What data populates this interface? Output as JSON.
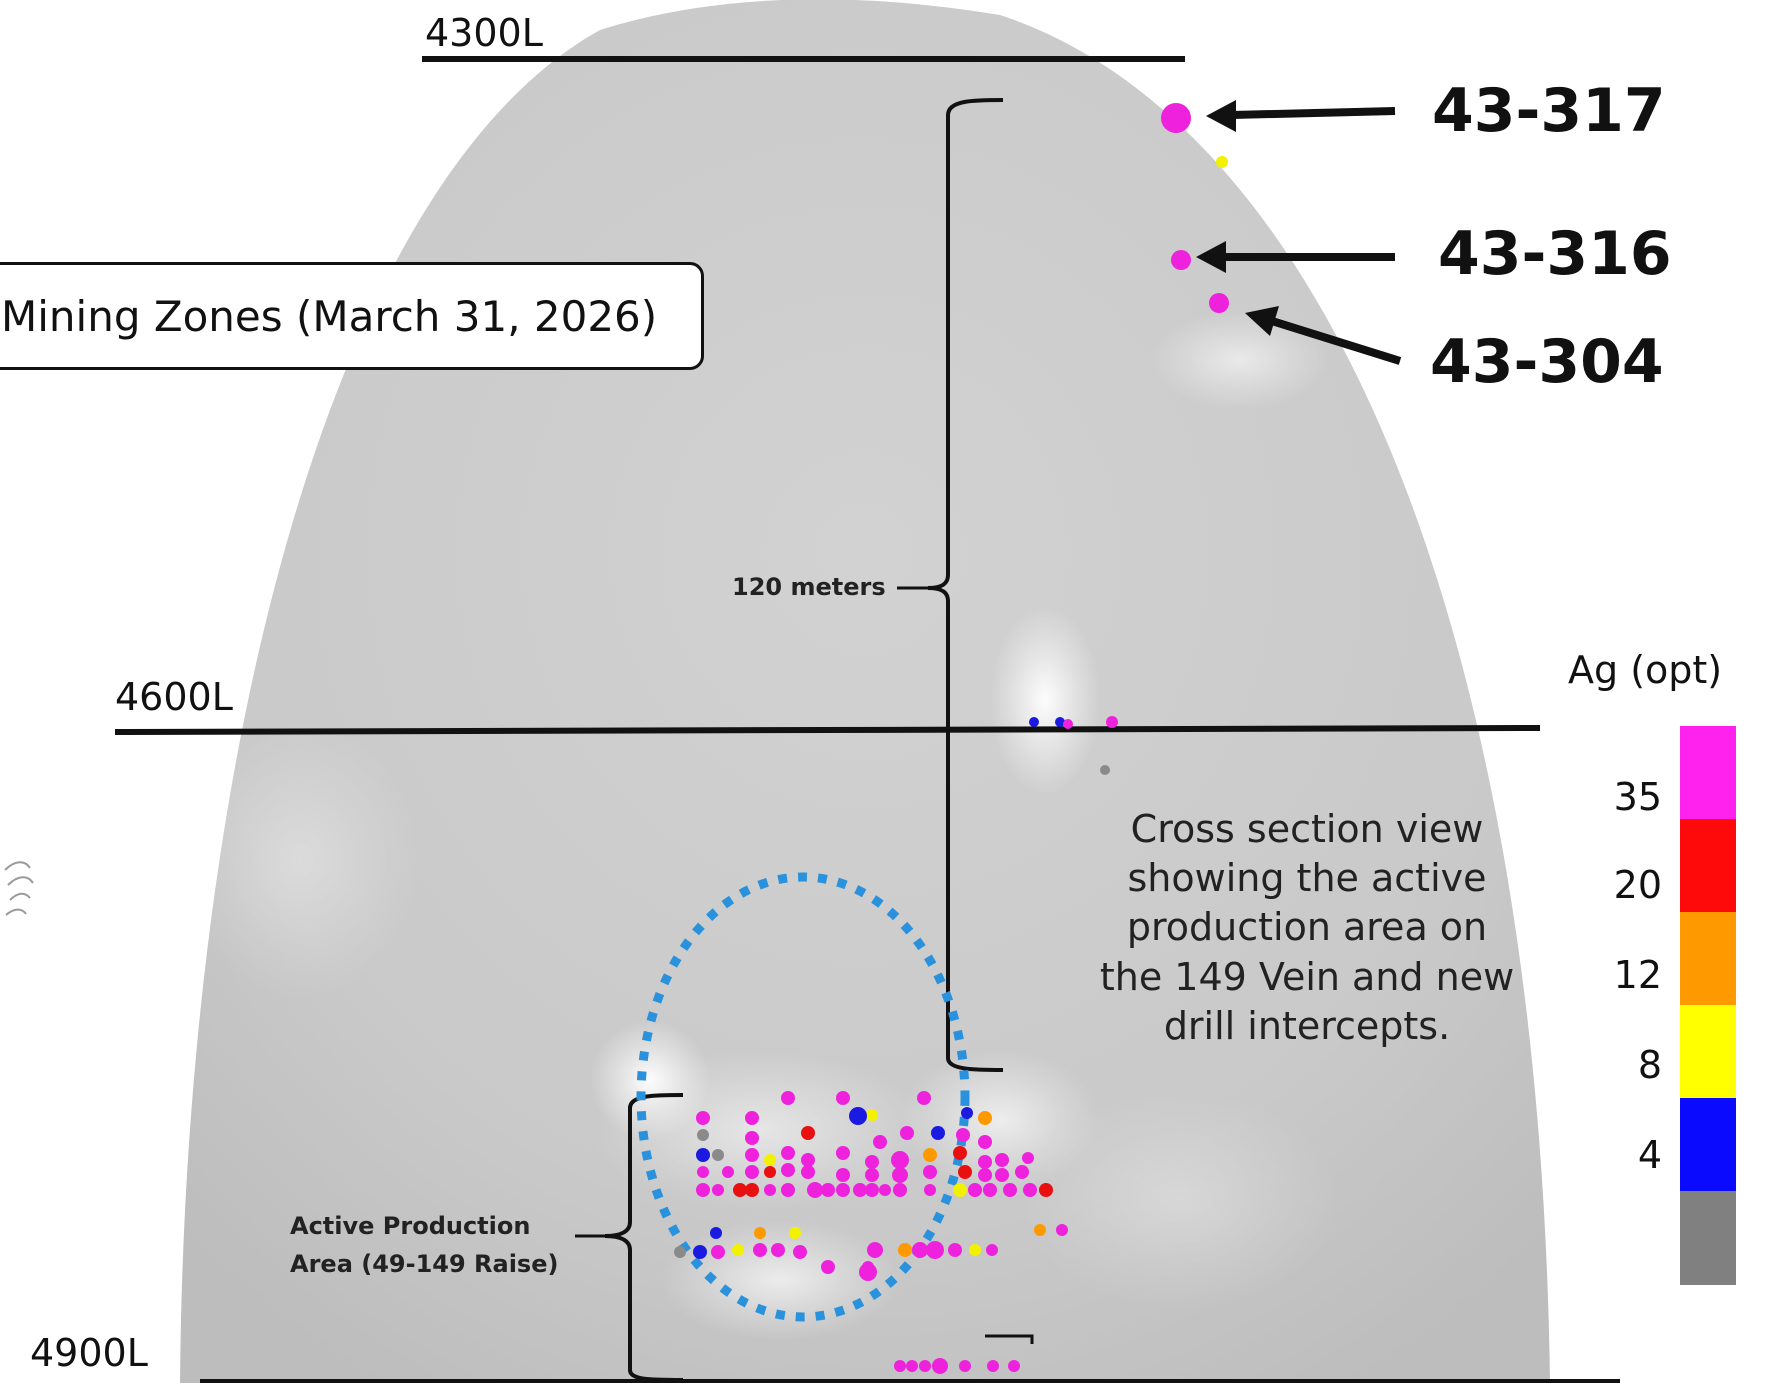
{
  "title_box": {
    "text": "Mining Zones (March 31, 2026)"
  },
  "levels": [
    {
      "id": "4300L",
      "label": "4300L"
    },
    {
      "id": "4600L",
      "label": "4600L"
    },
    {
      "id": "4900L",
      "label": "4900L"
    }
  ],
  "drill_holes": [
    {
      "id": "43-317",
      "label": "43-317"
    },
    {
      "id": "43-316",
      "label": "43-316"
    },
    {
      "id": "43-304",
      "label": "43-304"
    }
  ],
  "brackets": {
    "vertical_span": "120 meters",
    "production_line1": "Active Production",
    "production_line2": "Area (49-149 Raise)"
  },
  "description": [
    "Cross section view",
    "showing the active",
    "production area on",
    "the 149 Vein and new",
    "drill intercepts."
  ],
  "legend": {
    "title": "Ag (opt)",
    "ticks": [
      "35",
      "20",
      "12",
      "8",
      "4"
    ],
    "colors": [
      "#ff22ee",
      "#ff0a0a",
      "#ff9900",
      "#ffff00",
      "#0a0aff",
      "#808080"
    ]
  },
  "colors": {
    "magenta": "#ee22dd",
    "red": "#e81010",
    "orange": "#ff9900",
    "yellow": "#f2f200",
    "blue": "#1a1ae0",
    "gray": "#8a8a8a",
    "ellipse": "#2a92dc",
    "dome": "#cdcdcd"
  }
}
